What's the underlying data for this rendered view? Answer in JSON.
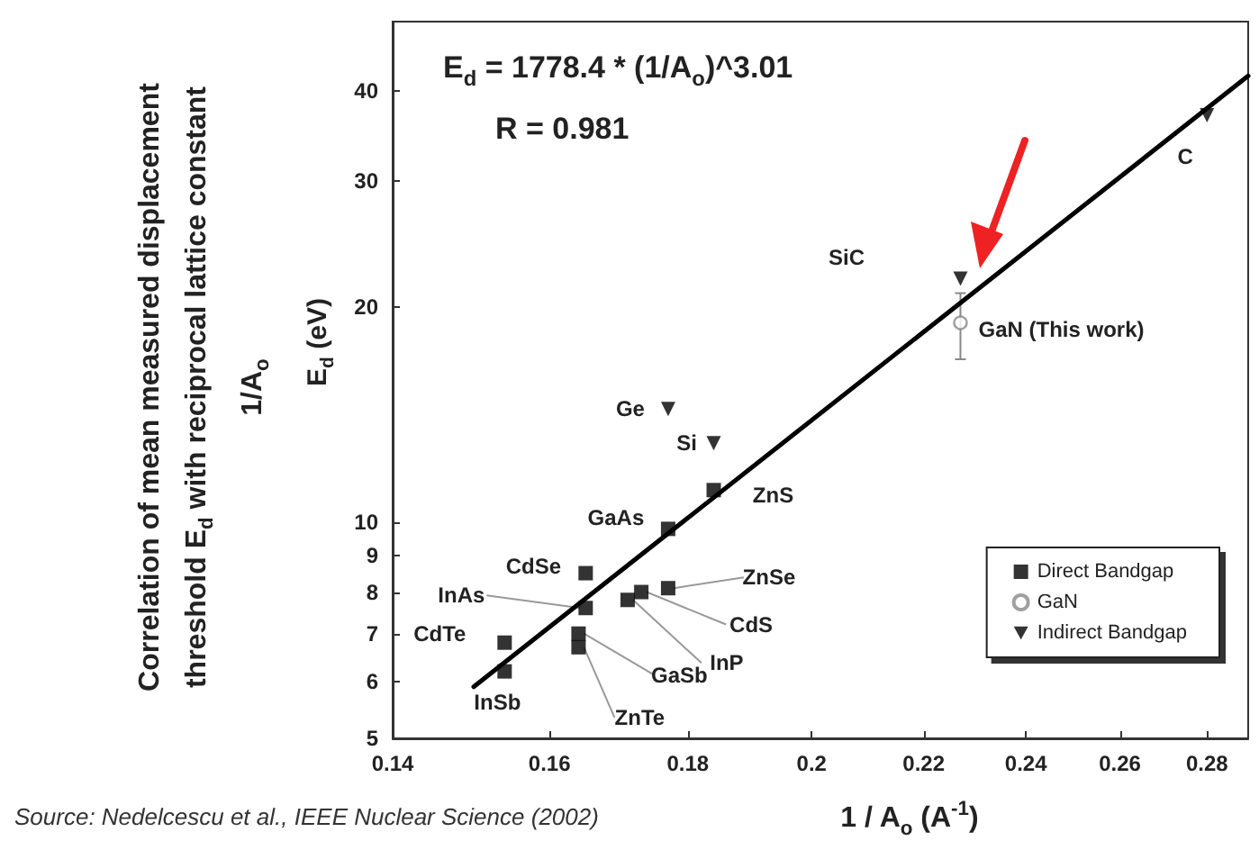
{
  "chart_data": {
    "type": "scatter",
    "title": "Correlation of mean measured displacement threshold E$_{d}$ with reciprocal lattice constant 1/A$_{o}$",
    "xlabel": "1 / A$_{o}$ (A$^{-1}$)",
    "ylabel": "E$_{d}$ (eV)",
    "log": "xy",
    "xlim": [
      0.14,
      0.29
    ],
    "ylim": [
      5,
      50
    ],
    "xticks": [
      0.14,
      0.16,
      0.18,
      0.2,
      0.22,
      0.24,
      0.26,
      0.28
    ],
    "yticks": [
      5,
      6,
      7,
      8,
      9,
      10,
      20,
      30,
      40
    ],
    "grid": false,
    "legend": "bottom right",
    "series": [
      {
        "name": "Direct Bandgap",
        "color": "#000000",
        "marker": "square",
        "x": [
          0.154,
          0.154,
          0.165,
          0.165,
          0.164,
          0.164,
          0.171,
          0.173,
          0.177,
          0.177,
          0.184
        ],
        "values": [
          6.2,
          6.8,
          8.5,
          7.6,
          7.0,
          6.7,
          7.8,
          8.0,
          8.1,
          9.8,
          11.1
        ]
      },
      {
        "name": "GaN",
        "color": "#888888",
        "marker": "circle",
        "x": [
          0.227
        ],
        "values": [
          19
        ],
        "errors": [
          [
            16.9,
            20.9
          ]
        ]
      },
      {
        "name": "Indirect Bandgap",
        "color": "#000000",
        "marker": "triangle",
        "x": [
          0.177,
          0.184,
          0.227,
          0.28
        ],
        "values": [
          14.4,
          12.9,
          21.9,
          37
        ]
      },
      {
        "type": "line",
        "color": "#000000",
        "marker": "none",
        "line_style": "solid",
        "x": [
          0.15,
          0.29
        ],
        "values": [
          5.9,
          42
        ]
      }
    ],
    "annotations": [
      {
        "text": "InSb",
        "x": 0.154,
        "y": 6.2
      },
      {
        "text": "CdTe",
        "x": 0.154,
        "y": 6.8
      },
      {
        "text": "CdSe",
        "x": 0.165,
        "y": 8.5
      },
      {
        "text": "InAs",
        "x": 0.165,
        "y": 7.6
      },
      {
        "text": "GaSb",
        "x": 0.164,
        "y": 7.0
      },
      {
        "text": "ZnTe",
        "x": 0.164,
        "y": 6.7
      },
      {
        "text": "InP",
        "x": 0.171,
        "y": 7.8
      },
      {
        "text": "CdS",
        "x": 0.173,
        "y": 8.0
      },
      {
        "text": "ZnSe",
        "x": 0.177,
        "y": 8.1
      },
      {
        "text": "GaAs",
        "x": 0.177,
        "y": 9.8
      },
      {
        "text": "ZnS",
        "x": 0.184,
        "y": 11.1
      },
      {
        "text": "Si",
        "x": 0.184,
        "y": 12.9
      },
      {
        "text": "Ge",
        "x": 0.177,
        "y": 14.4
      },
      {
        "text": "GaN (This work)",
        "x": 0.227,
        "y": 19
      },
      {
        "text": "C",
        "x": 0.28,
        "y": 37
      },
      "E$_{d}$ = 1778.4 * (1/A$_{o}$)^3.01",
      "R = 0.981",
      "SiC",
      "Source: Nedelcescu et al., IEEE Nuclear Science (2002)"
    ]
  }
}
